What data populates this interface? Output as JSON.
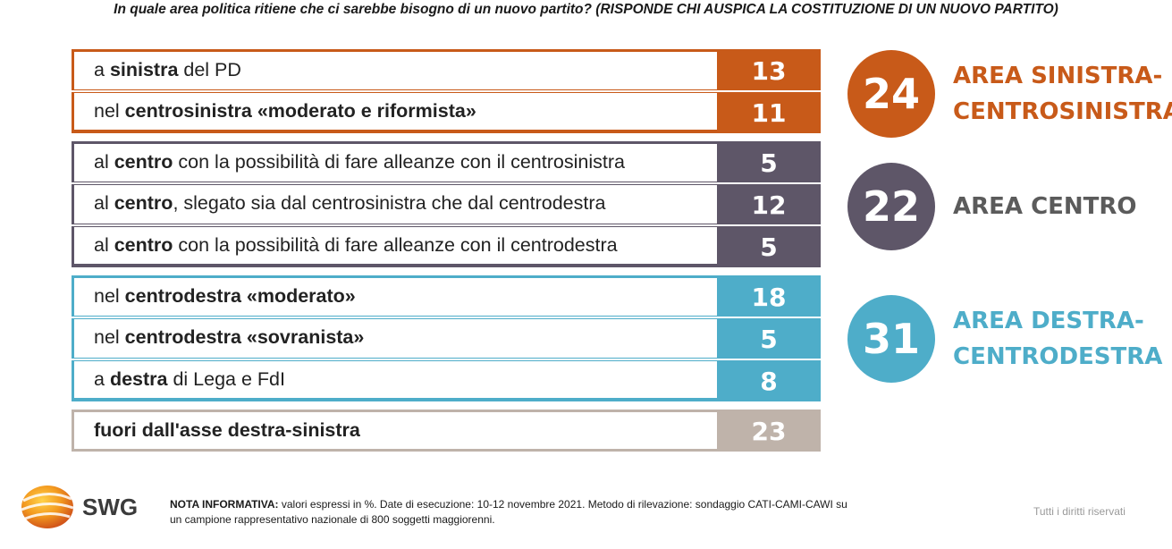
{
  "title": "In quale area politica ritiene che ci sarebbe bisogno di un nuovo partito? (RISPONDE CHI AUSPICA LA COSTITUZIONE DI UN NUOVO PARTITO)",
  "colors": {
    "sinistra": "#c85a19",
    "centro": "#5e5668",
    "destra": "#4eadc9",
    "fuori": "#bfb3aa"
  },
  "chart_data": {
    "type": "table",
    "unit": "%",
    "groups": [
      {
        "key": "sinistra",
        "rows": [
          {
            "parts": [
              {
                "t": "a ",
                "b": false
              },
              {
                "t": "sinistra",
                "b": true
              },
              {
                "t": " del PD",
                "b": false
              }
            ],
            "value": 13
          },
          {
            "parts": [
              {
                "t": "nel ",
                "b": false
              },
              {
                "t": "centrosinistra «moderato e riformista»",
                "b": true
              }
            ],
            "value": 11
          }
        ]
      },
      {
        "key": "centro",
        "rows": [
          {
            "parts": [
              {
                "t": "al ",
                "b": false
              },
              {
                "t": "centro",
                "b": true
              },
              {
                "t": " con la possibilità di fare alleanze con il centrosinistra",
                "b": false
              }
            ],
            "value": 5
          },
          {
            "parts": [
              {
                "t": "al ",
                "b": false
              },
              {
                "t": "centro",
                "b": true
              },
              {
                "t": ", slegato sia dal centrosinistra che dal centrodestra",
                "b": false
              }
            ],
            "value": 12
          },
          {
            "parts": [
              {
                "t": "al ",
                "b": false
              },
              {
                "t": "centro",
                "b": true
              },
              {
                "t": " con la possibilità di fare alleanze con il centrodestra",
                "b": false
              }
            ],
            "value": 5
          }
        ]
      },
      {
        "key": "destra",
        "rows": [
          {
            "parts": [
              {
                "t": "nel ",
                "b": false
              },
              {
                "t": "centrodestra «moderato»",
                "b": true
              }
            ],
            "value": 18
          },
          {
            "parts": [
              {
                "t": "nel ",
                "b": false
              },
              {
                "t": "centrodestra «sovranista»",
                "b": true
              }
            ],
            "value": 5
          },
          {
            "parts": [
              {
                "t": "a ",
                "b": false
              },
              {
                "t": "destra",
                "b": true
              },
              {
                "t": " di Lega e FdI",
                "b": false
              }
            ],
            "value": 8
          }
        ]
      },
      {
        "key": "fuori",
        "rows": [
          {
            "parts": [
              {
                "t": "fuori dall'asse destra-sinistra",
                "b": true
              }
            ],
            "value": 23
          }
        ]
      }
    ],
    "totals": [
      {
        "key": "sinistra",
        "value": 24,
        "label_lines": [
          "AREA SINISTRA-",
          "CENTROSINISTRA"
        ]
      },
      {
        "key": "centro",
        "value": 22,
        "label_lines": [
          "AREA CENTRO"
        ]
      },
      {
        "key": "destra",
        "value": 31,
        "label_lines": [
          "AREA DESTRA-",
          "CENTRODESTRA"
        ]
      }
    ]
  },
  "logo": {
    "text": "SWG",
    "icon": "globe-icon"
  },
  "footer": {
    "note_label": "NOTA INFORMATIVA:",
    "note_line1": " valori espressi in %. Date di esecuzione: 10-12 novembre 2021. Metodo di rilevazione: sondaggio CATI-CAMI-CAWI su",
    "note_line2": "un campione rappresentativo nazionale di 800 soggetti maggiorenni.",
    "rights": "Tutti i diritti riservati"
  }
}
